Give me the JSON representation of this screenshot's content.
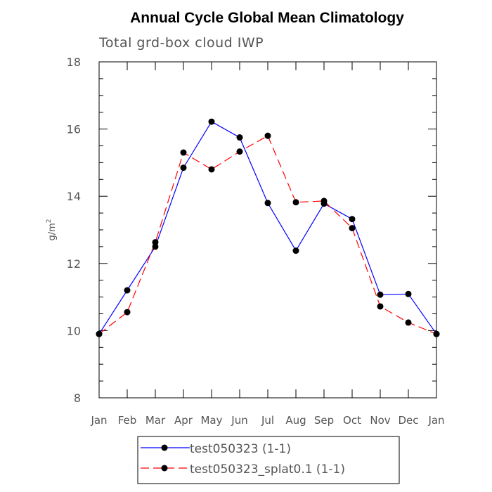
{
  "chart_data": {
    "type": "line",
    "title": "Annual Cycle Global Mean Climatology",
    "subtitle": "Total grd-box cloud IWP",
    "xlabel": "",
    "ylabel": "g/m",
    "ylabel_superscript": "2",
    "categories": [
      "Jan",
      "Feb",
      "Mar",
      "Apr",
      "May",
      "Jun",
      "Jul",
      "Aug",
      "Sep",
      "Oct",
      "Nov",
      "Dec",
      "Jan"
    ],
    "ylim": [
      8,
      18
    ],
    "yticks": [
      8,
      10,
      12,
      14,
      16,
      18
    ],
    "grid": false,
    "legend_placement": "bottom",
    "series": [
      {
        "name": "test050323 (1-1)",
        "color": "#0000ff",
        "dash": "solid",
        "values": [
          9.9,
          11.2,
          12.5,
          14.85,
          16.22,
          15.75,
          13.8,
          12.38,
          13.78,
          13.32,
          11.07,
          11.09,
          9.9
        ]
      },
      {
        "name": "test050323_splat0.1 (1-1)",
        "color": "#ff0000",
        "dash": "dashed",
        "values": [
          9.9,
          10.55,
          12.63,
          15.3,
          14.8,
          15.33,
          15.8,
          13.82,
          13.86,
          13.05,
          10.72,
          10.24,
          9.9
        ]
      }
    ]
  }
}
